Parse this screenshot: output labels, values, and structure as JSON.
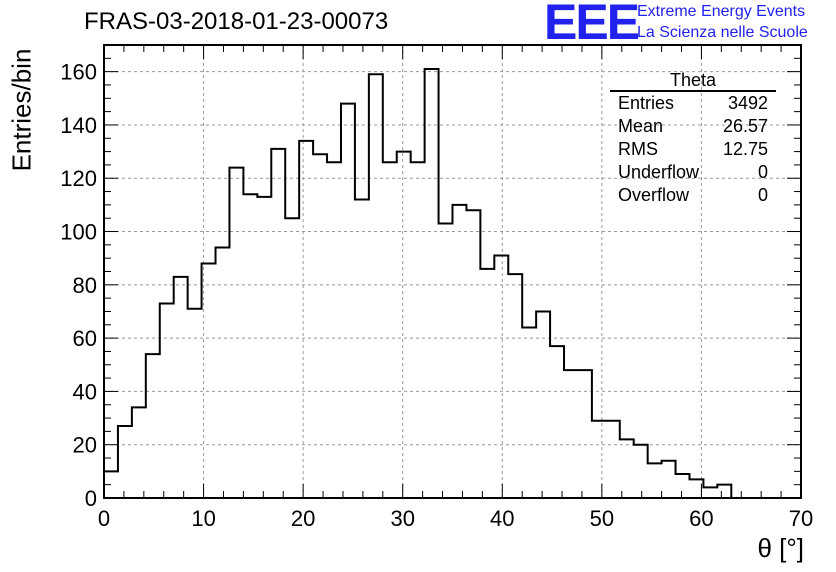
{
  "title": "FRAS-03-2018-01-23-00073",
  "logo": {
    "mark": "EEE",
    "line1": "Extreme Energy Events",
    "line2": "La Scienza nelle Scuole",
    "color": "#2222ee"
  },
  "stats": {
    "title": "Theta",
    "rows": [
      {
        "label": "Entries",
        "value": "3492"
      },
      {
        "label": "Mean",
        "value": "26.57"
      },
      {
        "label": "RMS",
        "value": "12.75"
      },
      {
        "label": "Underflow",
        "value": "0"
      },
      {
        "label": "Overflow",
        "value": "0"
      }
    ]
  },
  "chart_data": {
    "type": "histogram",
    "title": "FRAS-03-2018-01-23-00073",
    "xlabel": "θ [°]",
    "ylabel": "Entries/bin",
    "xlim": [
      0,
      70
    ],
    "ylim": [
      0,
      170
    ],
    "grid": true,
    "xticks": [
      0,
      10,
      20,
      30,
      40,
      50,
      60,
      70
    ],
    "yticks": [
      0,
      20,
      40,
      60,
      80,
      100,
      120,
      140,
      160
    ],
    "bin_width": 1.4,
    "bin_start": 0,
    "values": [
      10,
      27,
      34,
      54,
      73,
      83,
      71,
      88,
      94,
      124,
      114,
      113,
      131,
      105,
      134,
      129,
      126,
      148,
      112,
      159,
      126,
      130,
      126,
      161,
      103,
      110,
      108,
      86,
      91,
      84,
      64,
      70,
      57,
      48,
      48,
      29,
      29,
      22,
      20,
      13,
      14,
      9,
      7,
      4,
      5,
      0,
      0,
      0,
      0,
      0
    ]
  }
}
